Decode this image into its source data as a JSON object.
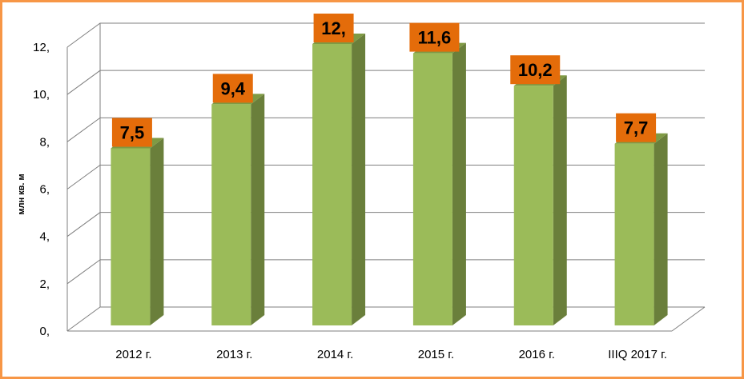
{
  "chart_data": {
    "type": "bar",
    "title": "",
    "xlabel": "",
    "ylabel": "млн кв. м",
    "categories": [
      "2012 г.",
      "2013 г.",
      "2014 г.",
      "2015 г.",
      "2016 г.",
      "IIIQ 2017 г."
    ],
    "values": [
      7.5,
      9.4,
      12.0,
      11.6,
      10.2,
      7.7
    ],
    "data_labels": [
      "7,5",
      "9,4",
      "12,",
      "11,6",
      "10,2",
      "7,7"
    ],
    "yticks": [
      "0,",
      "2,",
      "4,",
      "6,",
      "8,",
      "10,",
      "12,"
    ],
    "ylim": [
      0,
      12
    ],
    "grid": true,
    "legend": "none",
    "colors": {
      "bar_front": "#9bbb59",
      "bar_side": "#6a7f3b",
      "bar_top": "#7f9a44",
      "label_fill": "#e46c0a",
      "border": "#f79646",
      "grid": "#7f7f7f"
    }
  }
}
